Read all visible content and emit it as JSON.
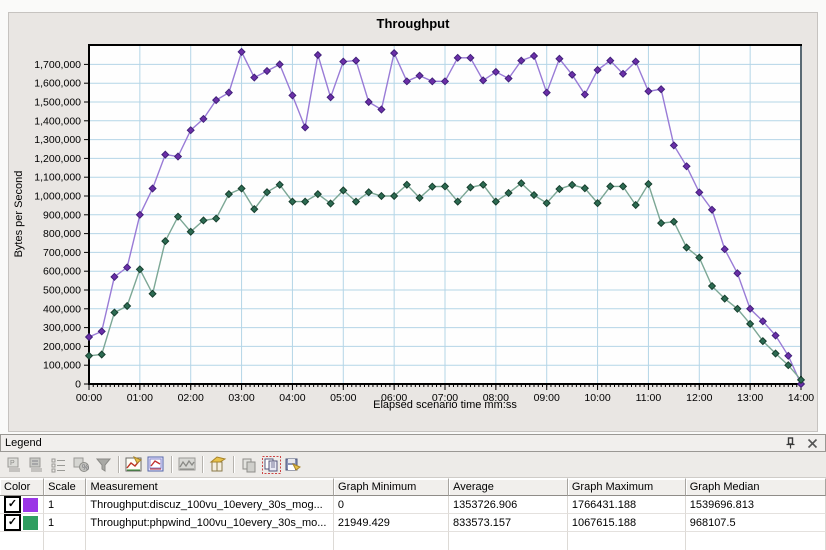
{
  "chart_data": {
    "type": "line",
    "title": "Throughput",
    "xlabel": "Elapsed scenario time mm:ss",
    "ylabel": "Bytes per Second",
    "x_tick_labels": [
      "00:00",
      "01:00",
      "02:00",
      "03:00",
      "04:00",
      "05:00",
      "06:00",
      "07:00",
      "08:00",
      "09:00",
      "10:00",
      "11:00",
      "12:00",
      "13:00",
      "14:00"
    ],
    "x_interval_seconds": 15,
    "ylim": [
      0,
      1795000
    ],
    "y_tick_step": 100000,
    "y_tick_max": 1700000,
    "grid": true,
    "gridline_color": "#b4d5e7",
    "plot_background": "#fefefe",
    "series": [
      {
        "name": "Throughput:discuz_100vu_10every_30s_mog...",
        "line_color": "#997bd6",
        "marker_color": "#6b2fa8",
        "marker_stroke": "#41217a",
        "values": [
          250000,
          280000,
          570000,
          620000,
          900000,
          1040000,
          1220000,
          1210000,
          1350000,
          1410000,
          1510000,
          1550000,
          1766431,
          1630000,
          1665000,
          1700000,
          1535000,
          1365000,
          1750000,
          1525000,
          1715000,
          1720000,
          1500000,
          1460000,
          1760000,
          1610000,
          1640000,
          1610000,
          1610000,
          1735000,
          1735000,
          1615000,
          1660000,
          1625000,
          1720000,
          1745000,
          1550000,
          1730000,
          1645000,
          1540000,
          1670000,
          1720000,
          1650000,
          1715000,
          1557000,
          1568000,
          1269000,
          1158000,
          1019000,
          927000,
          717000,
          589000,
          400000,
          334000,
          258000,
          150000,
          0
        ]
      },
      {
        "name": "Throughput:phpwind_100vu_10every_30s_mo...",
        "line_color": "#7ca795",
        "marker_color": "#2c6b52",
        "marker_stroke": "#173f2e",
        "values": [
          150000,
          157000,
          380000,
          415000,
          610000,
          480000,
          760000,
          890000,
          810000,
          870000,
          880000,
          1010000,
          1040000,
          930000,
          1020000,
          1060000,
          970000,
          970000,
          1010000,
          960000,
          1030000,
          970000,
          1020000,
          1000000,
          1000000,
          1060000,
          990000,
          1050000,
          1051000,
          970000,
          1046000,
          1060000,
          970000,
          1016000,
          1067615,
          1005000,
          962000,
          1037000,
          1059000,
          1041000,
          962000,
          1051000,
          1051000,
          952000,
          1064000,
          856000,
          863000,
          726000,
          672000,
          521000,
          454000,
          400000,
          320000,
          228000,
          162000,
          100000,
          21949
        ]
      }
    ]
  },
  "legend": {
    "title": "Legend",
    "window_buttons": [
      {
        "name": "pin-icon"
      },
      {
        "name": "close-icon"
      }
    ],
    "toolbar": [
      {
        "name": "configure-measurements-icon",
        "style": "gray-list"
      },
      {
        "name": "sort-legend-icon",
        "style": "gray-list2"
      },
      {
        "name": "show-hide-legend-columns-icon",
        "style": "gray-list3"
      },
      {
        "name": "legend-preferences-icon",
        "style": "gray-badge"
      },
      {
        "name": "filter-icon",
        "style": "funnel"
      },
      {
        "name": "separator"
      },
      {
        "name": "edit-graph-icon",
        "style": "chart-edit"
      },
      {
        "name": "graph-settings-icon",
        "style": "chart-frame"
      },
      {
        "name": "separator"
      },
      {
        "name": "raw-data-icon",
        "style": "wave"
      },
      {
        "name": "separator"
      },
      {
        "name": "export-graph-icon",
        "style": "cube"
      },
      {
        "name": "separator"
      },
      {
        "name": "duplicate-icon",
        "style": "copy-gray"
      },
      {
        "name": "copy-icon",
        "style": "copy-active"
      },
      {
        "name": "save-icon",
        "style": "disk"
      }
    ],
    "table": {
      "columns": [
        "Color",
        "Scale",
        "Measurement",
        "Graph Minimum",
        "Average",
        "Graph Maximum",
        "Graph Median"
      ],
      "rows": [
        {
          "checked": true,
          "color": "#9a36e6",
          "scale": "1",
          "measurement": "Throughput:discuz_100vu_10every_30s_mog...",
          "graph_minimum": "0",
          "average": "1353726.906",
          "graph_maximum": "1766431.188",
          "graph_median": "1539696.813"
        },
        {
          "checked": true,
          "color": "#2f9e60",
          "scale": "1",
          "measurement": "Throughput:phpwind_100vu_10every_30s_mo...",
          "graph_minimum": "21949.429",
          "average": "833573.157",
          "graph_maximum": "1067615.188",
          "graph_median": "968107.5"
        }
      ]
    }
  }
}
